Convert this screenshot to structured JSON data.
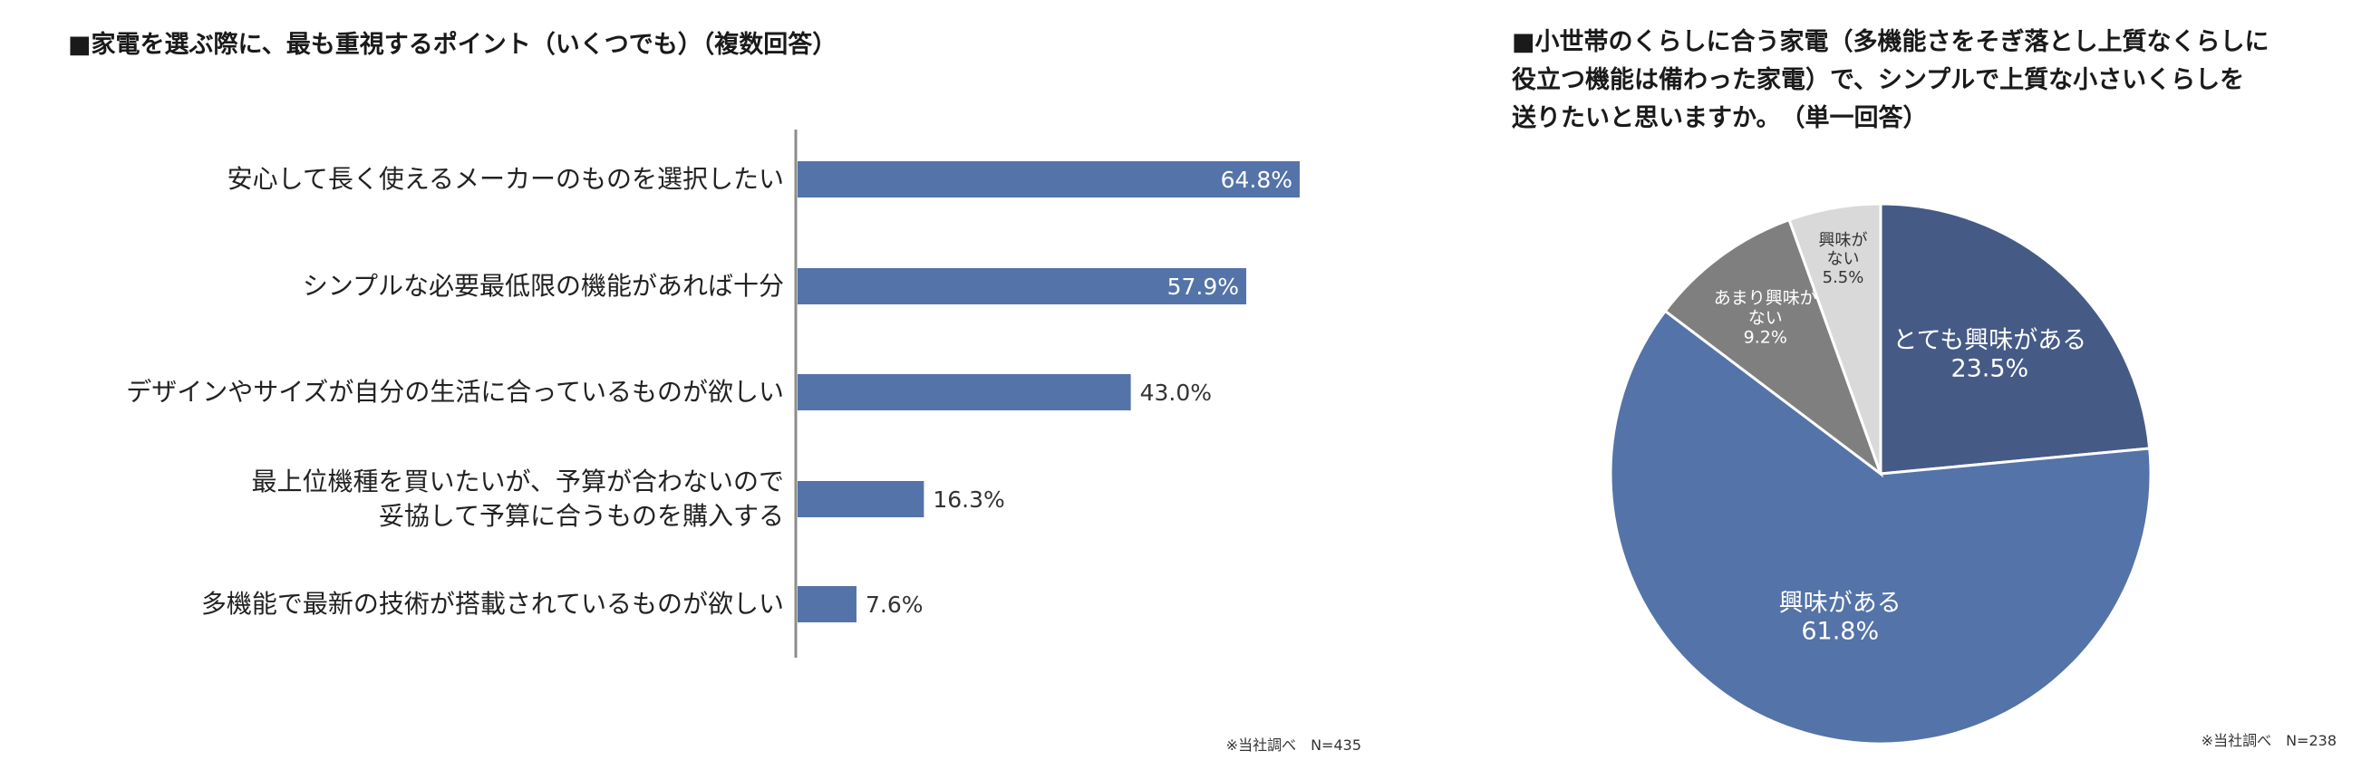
{
  "chart_data": [
    {
      "type": "bar",
      "orientation": "horizontal",
      "title": "■家電を選ぶ際に、最も重視するポイント（いくつでも）（複数回答）",
      "categories": [
        [
          "安心して長く使えるメーカーのものを選択したい"
        ],
        [
          "シンプルな必要最低限の機能があれば十分"
        ],
        [
          "デザインやサイズが自分の生活に合っているものが欲しい"
        ],
        [
          "最上位機種を買いたいが、予算が合わないので",
          "妥協して予算に合うものを購入する"
        ],
        [
          "多機能で最新の技術が搭載されているものが欲しい"
        ]
      ],
      "values": [
        64.8,
        57.9,
        43.0,
        16.3,
        7.6
      ],
      "value_labels": [
        "64.8%",
        "57.9%",
        "43.0%",
        "16.3%",
        "7.6%"
      ],
      "xlim": [
        0,
        100
      ],
      "grid": false,
      "bar_color": "#5473a8",
      "footnote": "※当社調べ　N=435"
    },
    {
      "type": "pie",
      "title_lines": [
        "■小世帯のくらしに合う家電（多機能さをそぎ落とし上質なくらしに",
        "役立つ機能は備わった家電）で、シンプルで上質な小さいくらしを",
        "送りたいと思いますか。　（単一回答）"
      ],
      "slices": [
        {
          "label_lines": [
            "とても興味がある",
            "23.5%"
          ],
          "value": 23.5,
          "color": "#465a86"
        },
        {
          "label_lines": [
            "興味がある",
            "61.8%"
          ],
          "value": 61.8,
          "color": "#5473a8"
        },
        {
          "label_lines": [
            "あまり興味が",
            "ない",
            "9.2%"
          ],
          "value": 9.2,
          "color": "#7f7f7f"
        },
        {
          "label_lines": [
            "興味が",
            "ない",
            "5.5%"
          ],
          "value": 5.5,
          "color": "#d9d9d9"
        }
      ],
      "footnote": "※当社調べ　N=238"
    }
  ]
}
